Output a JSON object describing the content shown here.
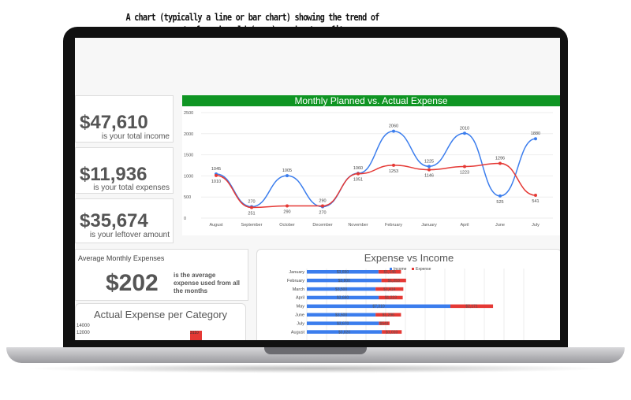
{
  "annotation": "A chart (typically a line or bar chart) showing the trend of revenue, cost of goods sold (cogs), and net profit over a selected time period (e.g., last 12 months). This helps identify seasonal trends, growth patterns and potential issues.",
  "stats": [
    {
      "value": "$47,610",
      "label": "is your total income"
    },
    {
      "value": "$11,936",
      "label": "is your total expenses"
    },
    {
      "value": "$35,674",
      "label": "is your leftover amount"
    }
  ],
  "average": {
    "title": "Average Monthly Expenses",
    "value": "$202",
    "label": "is the average expense used from all the months"
  },
  "colors": {
    "blue": "#3b7ded",
    "red": "#e53935",
    "green": "#0f9523"
  },
  "chart_data": [
    {
      "type": "line",
      "title": "Monthly Planned vs. Actual Expense",
      "categories": [
        "August",
        "September",
        "October",
        "December",
        "November",
        "February",
        "January",
        "April",
        "June",
        "July"
      ],
      "ylim": [
        0,
        2500
      ],
      "yticks": [
        0,
        500,
        1000,
        1500,
        2000,
        2500
      ],
      "grid": true,
      "series": [
        {
          "color": "#3b7ded",
          "values": [
            1045,
            270,
            1005,
            270,
            1060,
            2060,
            1225,
            2010,
            525,
            1880
          ]
        },
        {
          "color": "#e53935",
          "values": [
            1010,
            251,
            290,
            290,
            1051,
            1253,
            1146,
            1223,
            1296,
            541
          ]
        }
      ]
    },
    {
      "type": "bar",
      "orientation": "horizontal",
      "stacked": true,
      "title": "Expense vs Income",
      "legend": "top",
      "categories": [
        "January",
        "February",
        "March",
        "April",
        "May",
        "June",
        "July",
        "August"
      ],
      "series": [
        {
          "name": "Income",
          "color": "#3b7ded",
          "values": [
            3650,
            3800,
            3500,
            3660,
            7310,
            3500,
            3670,
            3820
          ],
          "labels": [
            "$3,650",
            "$3,800",
            "$3,500",
            "$3,660",
            "$7,310",
            "$3,500",
            "$3,670",
            "$3,820"
          ]
        },
        {
          "name": "Expense",
          "color": "#e53935",
          "values": [
            1146,
            1253,
            1414,
            1223,
            2171,
            1296,
            541,
            1010
          ],
          "labels": [
            "$1,146",
            "$1,253",
            "$1,414",
            "$1,223",
            "$2,171",
            "$1,296",
            "$541",
            "$1,010"
          ]
        }
      ]
    },
    {
      "type": "bar",
      "title": "Actual Expense per Category",
      "yticks": [
        12000,
        14000
      ],
      "visible_bar_label": "3110"
    }
  ]
}
